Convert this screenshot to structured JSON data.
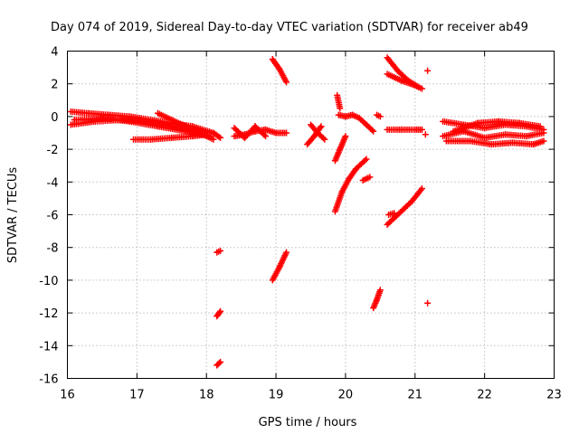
{
  "chart_data": {
    "type": "scatter",
    "title": "Day 074 of 2019, Sidereal Day-to-day VTEC variation (SDTVAR) for receiver ab49",
    "xlabel": "GPS time / hours",
    "ylabel": "SDTVAR / TECUs",
    "xlim": [
      16,
      23
    ],
    "ylim": [
      -16,
      4
    ],
    "x_ticks": [
      "16",
      "17",
      "18",
      "19",
      "20",
      "21",
      "22",
      "23"
    ],
    "y_ticks": [
      "4",
      "2",
      "0",
      "-2",
      "-4",
      "-6",
      "-8",
      "-10",
      "-12",
      "-14",
      "-16"
    ],
    "grid": true,
    "marker": "+",
    "color": "#ff0000",
    "segments": [
      {
        "x": [
          16.05,
          16.3,
          16.6,
          16.9,
          17.2,
          17.5,
          17.8,
          18.1,
          18.2
        ],
        "y": [
          0.3,
          0.2,
          0.1,
          0.0,
          -0.2,
          -0.4,
          -0.6,
          -1.0,
          -1.3
        ]
      },
      {
        "x": [
          16.05,
          16.4,
          16.8,
          17.1,
          17.4,
          17.7,
          18.0
        ],
        "y": [
          -0.5,
          -0.3,
          -0.2,
          -0.3,
          -0.5,
          -0.8,
          -1.1
        ]
      },
      {
        "x": [
          16.1,
          16.5,
          16.9,
          17.3,
          17.7,
          18.05
        ],
        "y": [
          -0.2,
          -0.1,
          -0.3,
          -0.6,
          -0.9,
          -1.2
        ]
      },
      {
        "x": [
          17.3,
          17.5,
          17.7,
          17.9,
          18.1
        ],
        "y": [
          0.2,
          -0.2,
          -0.6,
          -1.0,
          -1.4
        ]
      },
      {
        "x": [
          16.95,
          17.2,
          17.5,
          17.8,
          18.0
        ],
        "y": [
          -1.4,
          -1.4,
          -1.3,
          -1.2,
          -1.1
        ]
      },
      {
        "x": [
          18.4,
          18.55,
          18.7,
          18.85,
          19.0,
          19.15
        ],
        "y": [
          -1.2,
          -1.1,
          -0.9,
          -0.8,
          -1.0,
          -1.0
        ]
      },
      {
        "x": [
          18.4,
          18.55,
          18.7,
          18.85
        ],
        "y": [
          -0.7,
          -1.3,
          -0.6,
          -1.2
        ]
      },
      {
        "x": [
          18.95,
          19.05,
          19.15
        ],
        "y": [
          3.5,
          2.9,
          2.1
        ]
      },
      {
        "x": [
          19.45,
          19.55,
          19.65
        ],
        "y": [
          -1.7,
          -1.2,
          -0.6
        ]
      },
      {
        "x": [
          19.5,
          19.6,
          19.7
        ],
        "y": [
          -0.5,
          -1.0,
          -1.4
        ]
      },
      {
        "x": [
          19.88,
          19.92
        ],
        "y": [
          1.3,
          0.5
        ]
      },
      {
        "x": [
          19.9,
          20.0,
          20.1,
          20.2,
          20.3,
          20.4
        ],
        "y": [
          0.1,
          0.0,
          0.1,
          -0.1,
          -0.5,
          -0.9
        ]
      },
      {
        "x": [
          19.85,
          19.92,
          20.0
        ],
        "y": [
          -2.7,
          -2.0,
          -1.2
        ]
      },
      {
        "x": [
          19.85,
          19.95,
          20.05,
          20.15,
          20.3
        ],
        "y": [
          -5.8,
          -4.6,
          -3.8,
          -3.2,
          -2.6
        ]
      },
      {
        "x": [
          20.25,
          20.35
        ],
        "y": [
          -3.9,
          -3.7
        ]
      },
      {
        "x": [
          20.45,
          20.5
        ],
        "y": [
          0.1,
          0.0
        ]
      },
      {
        "x": [
          20.6,
          20.8,
          21.0,
          21.1
        ],
        "y": [
          -0.8,
          -0.8,
          -0.8,
          -0.8
        ]
      },
      {
        "x": [
          20.6,
          20.75,
          20.9,
          21.05
        ],
        "y": [
          3.6,
          2.8,
          2.2,
          1.8
        ]
      },
      {
        "x": [
          20.6,
          20.8,
          21.0,
          21.1
        ],
        "y": [
          2.6,
          2.2,
          1.9,
          1.7
        ]
      },
      {
        "x": [
          21.18
        ],
        "y": [
          2.8
        ]
      },
      {
        "x": [
          20.6,
          20.75,
          20.95,
          21.1
        ],
        "y": [
          -6.6,
          -6.0,
          -5.2,
          -4.4
        ]
      },
      {
        "x": [
          20.62,
          20.7
        ],
        "y": [
          -6.0,
          -5.9
        ]
      },
      {
        "x": [
          20.4,
          20.45,
          20.5
        ],
        "y": [
          -11.7,
          -11.2,
          -10.6
        ]
      },
      {
        "x": [
          21.18
        ],
        "y": [
          -11.4
        ]
      },
      {
        "x": [
          21.15
        ],
        "y": [
          -1.1
        ]
      },
      {
        "x": [
          21.4,
          21.7,
          22.0,
          22.3,
          22.6,
          22.85
        ],
        "y": [
          -0.3,
          -0.5,
          -0.7,
          -0.5,
          -0.6,
          -0.8
        ]
      },
      {
        "x": [
          21.4,
          21.7,
          22.0,
          22.3,
          22.6,
          22.85
        ],
        "y": [
          -1.2,
          -0.9,
          -1.3,
          -1.1,
          -1.2,
          -1.0
        ]
      },
      {
        "x": [
          21.45,
          21.8,
          22.1,
          22.4,
          22.7,
          22.85
        ],
        "y": [
          -1.5,
          -1.5,
          -1.7,
          -1.6,
          -1.7,
          -1.5
        ]
      },
      {
        "x": [
          21.55,
          21.9,
          22.2,
          22.5,
          22.8
        ],
        "y": [
          -0.9,
          -0.4,
          -0.3,
          -0.4,
          -0.6
        ]
      },
      {
        "x": [
          18.15,
          18.2
        ],
        "y": [
          -8.3,
          -8.2
        ]
      },
      {
        "x": [
          18.15,
          18.2
        ],
        "y": [
          -12.2,
          -11.9
        ]
      },
      {
        "x": [
          18.15,
          18.2
        ],
        "y": [
          -15.2,
          -15.0
        ]
      },
      {
        "x": [
          18.95,
          19.05,
          19.15
        ],
        "y": [
          -10.0,
          -9.2,
          -8.3
        ]
      }
    ]
  }
}
